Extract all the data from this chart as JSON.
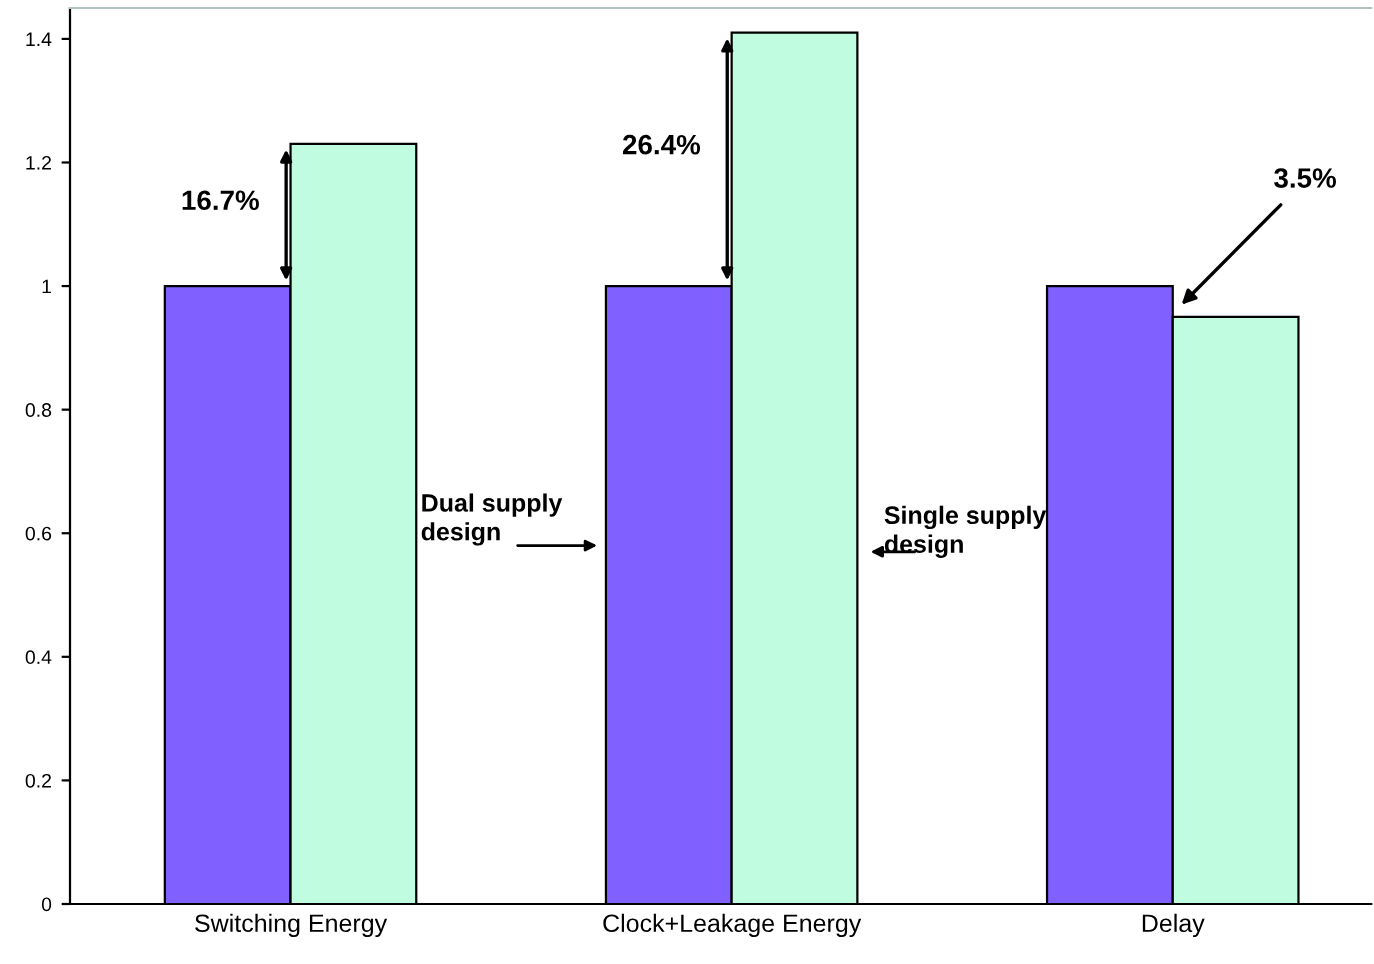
{
  "chart_data": {
    "type": "bar",
    "categories": [
      "Switching Energy",
      "Clock+Leakage Energy",
      "Delay"
    ],
    "series": [
      {
        "name": "Dual supply design",
        "color": "#8060ff",
        "values": [
          1,
          1,
          1
        ]
      },
      {
        "name": "Single supply design",
        "color": "#c0fce0",
        "values": [
          1.23,
          1.41,
          0.95
        ]
      }
    ],
    "ylim": [
      0,
      1.45
    ],
    "yticks": [
      0,
      0.2,
      0.4,
      0.6,
      0.8,
      1,
      1.2,
      1.4
    ],
    "grid": false,
    "annotations": [
      "16.7%",
      "26.4%",
      "3.5%"
    ]
  }
}
